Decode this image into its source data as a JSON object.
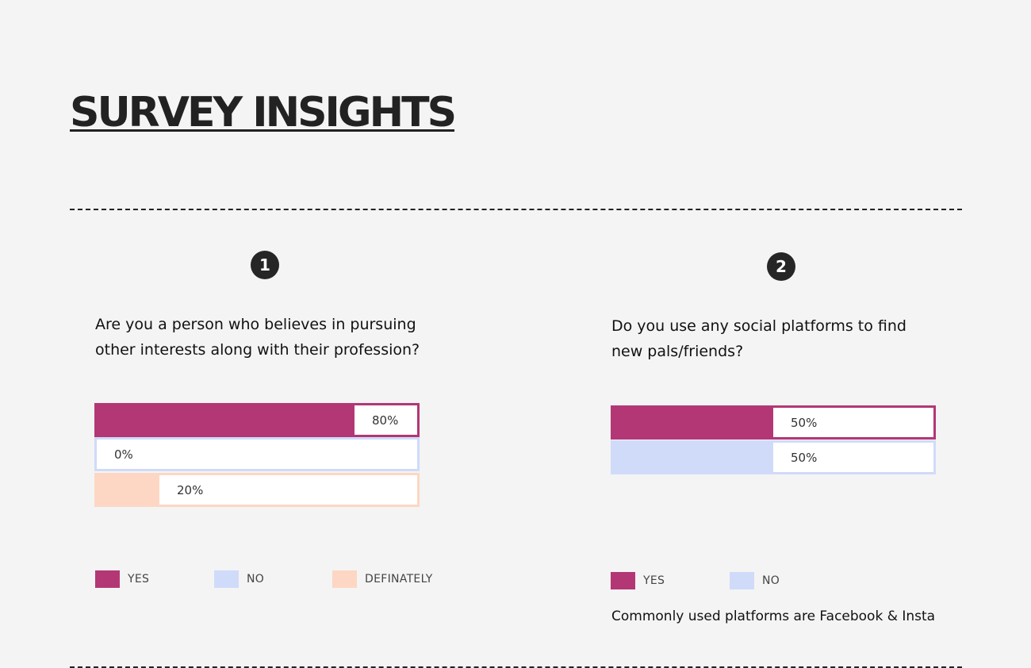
{
  "page": {
    "title": "SURVEY INSIGHTS"
  },
  "colors": {
    "yes": "#b33775",
    "no": "#d0dbfa",
    "definately": "#fdd7c3"
  },
  "chart_data": [
    {
      "type": "bar",
      "number": "1",
      "question": "Are you a person who believes in pursuing other interests along with their profession?",
      "categories": [
        "YES",
        "NO",
        "DEFINATELY"
      ],
      "values": [
        80,
        0,
        20
      ],
      "value_labels": [
        "80%",
        "0%",
        "20%"
      ],
      "legend": [
        "YES",
        "NO",
        "DEFINATELY"
      ]
    },
    {
      "type": "bar",
      "number": "2",
      "question": "Do you use any social platforms to find new pals/friends?",
      "categories": [
        "YES",
        "NO"
      ],
      "values": [
        50,
        50
      ],
      "value_labels": [
        "50%",
        "50%"
      ],
      "legend": [
        "YES",
        "NO"
      ],
      "note": "Commonly used platforms are Facebook & Insta"
    }
  ]
}
